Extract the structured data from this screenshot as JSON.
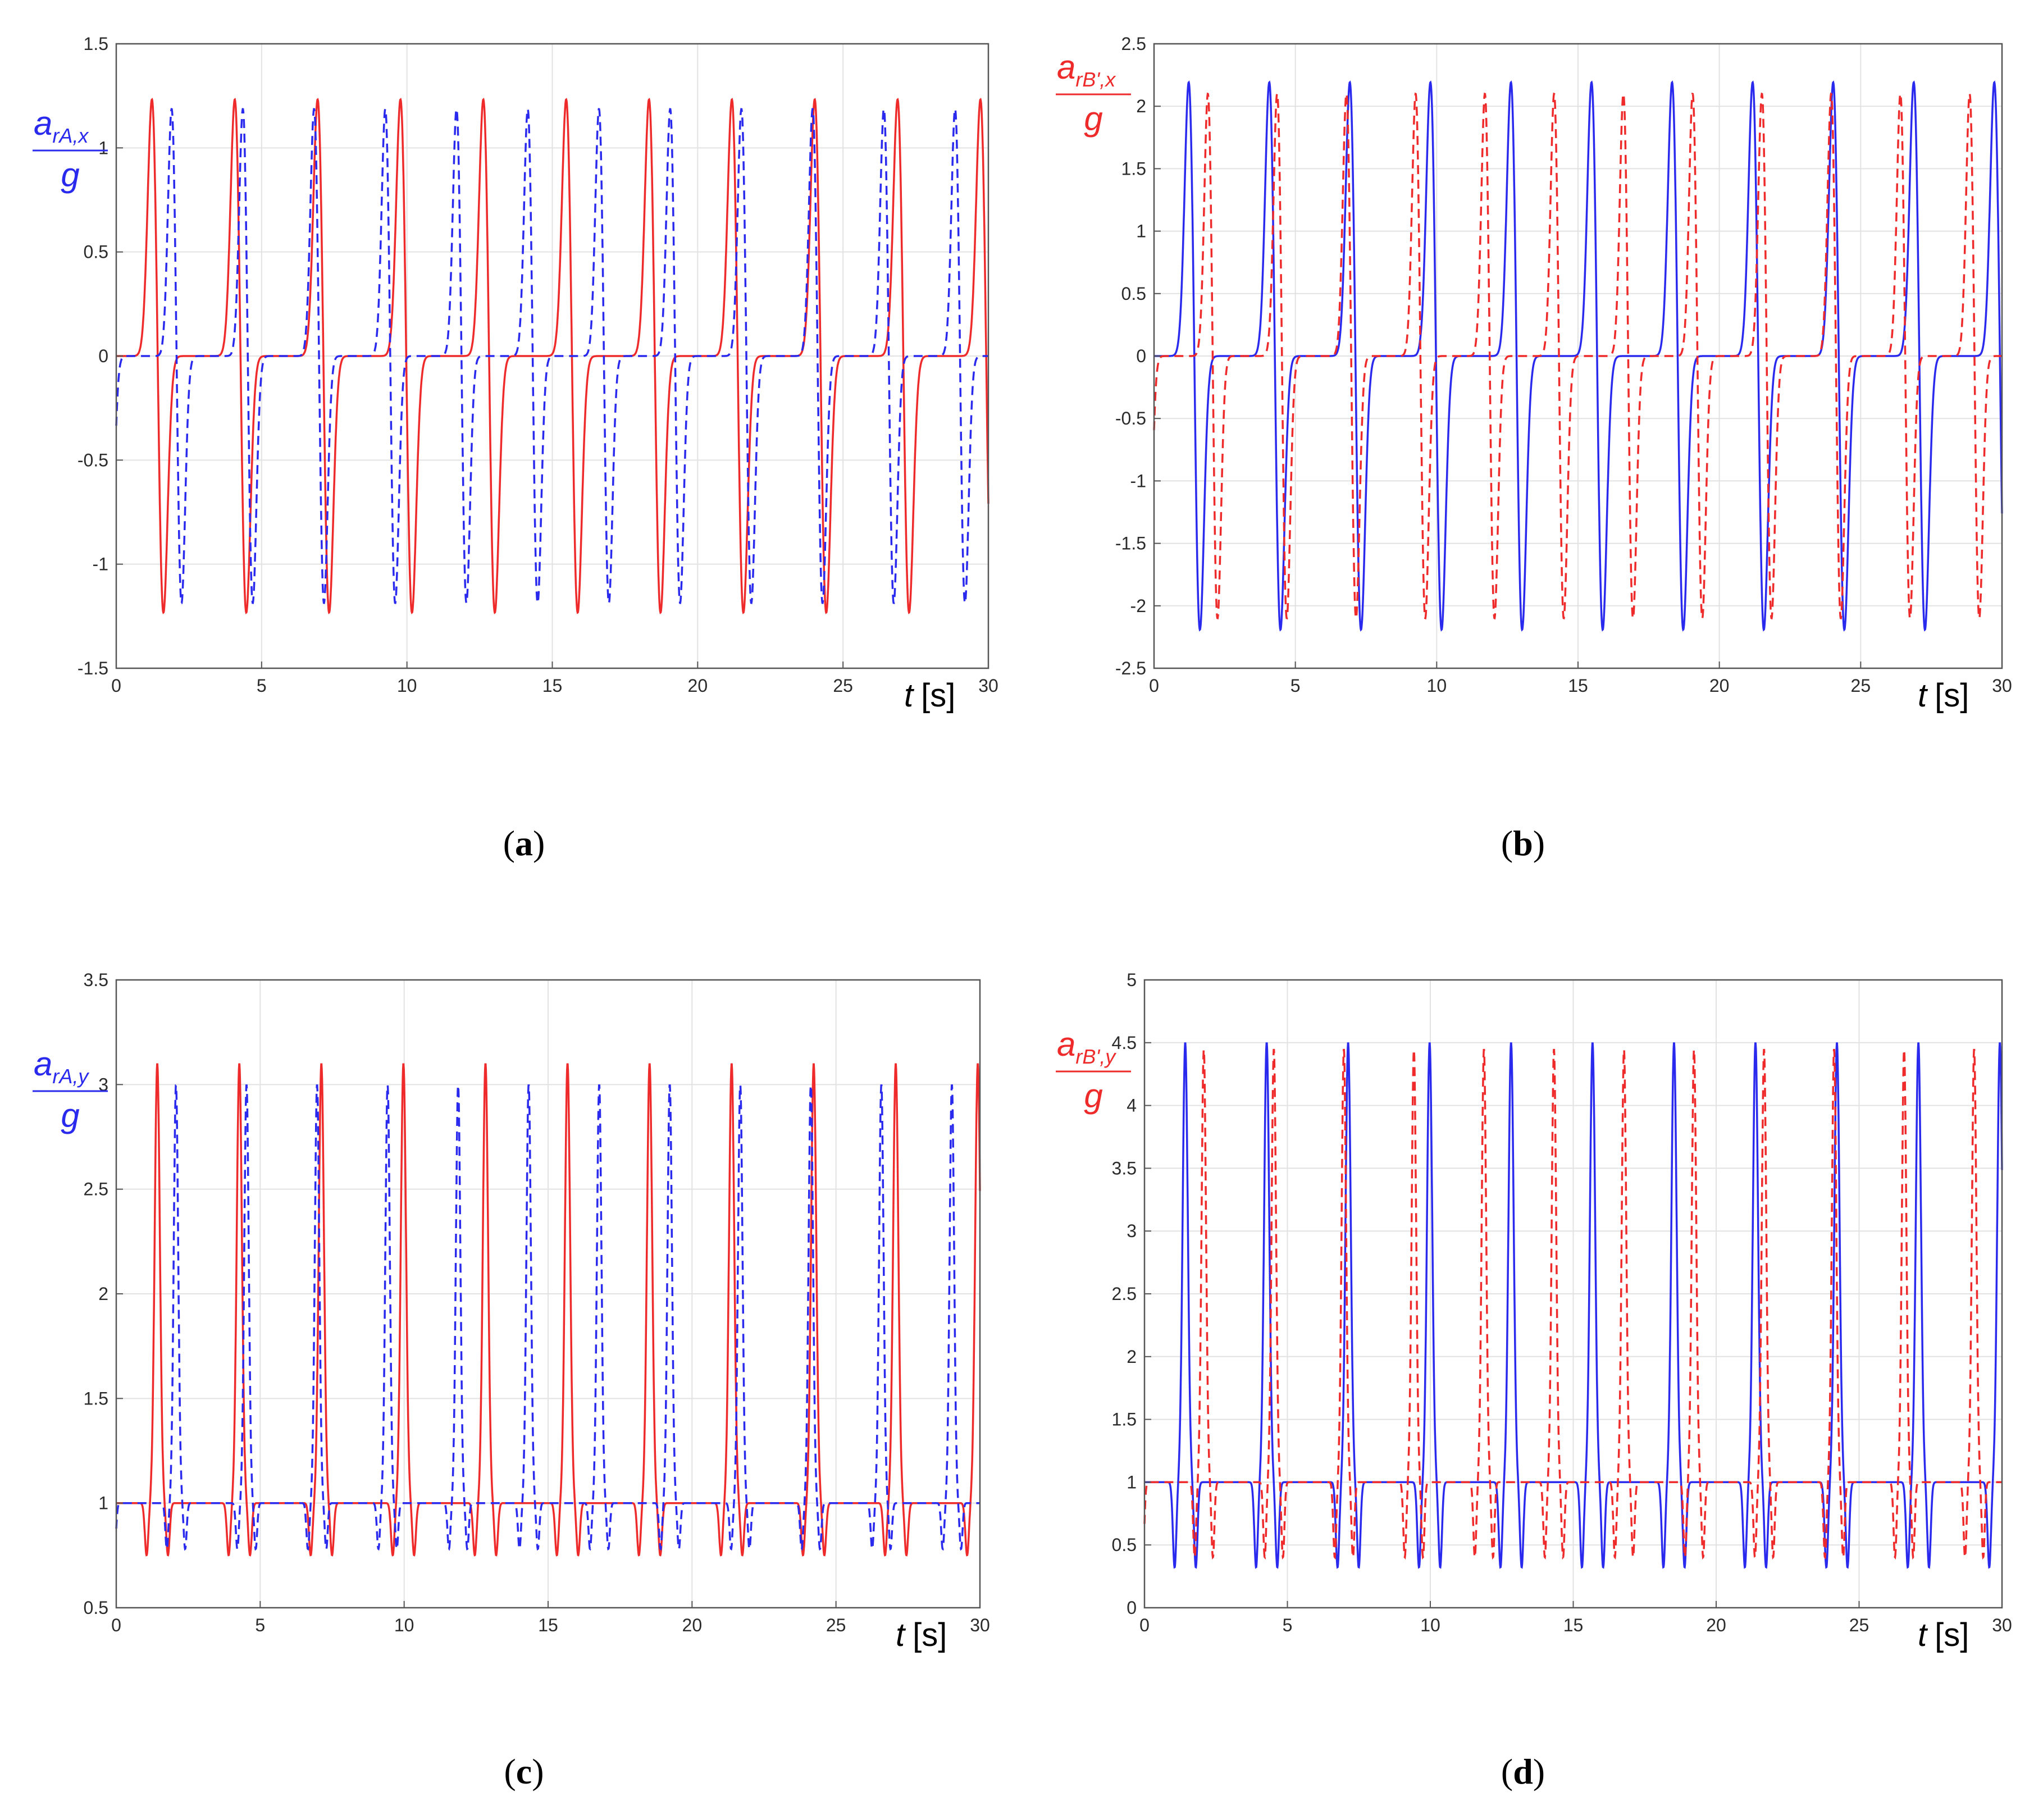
{
  "figure": {
    "panels": [
      {
        "id": "a",
        "caption": "a"
      },
      {
        "id": "b",
        "caption": "b"
      },
      {
        "id": "c",
        "caption": "c"
      },
      {
        "id": "d",
        "caption": "d"
      }
    ]
  },
  "colors": {
    "red": "#ee2a2a",
    "blue": "#2a2aee",
    "grid": "#e2e2e2",
    "axis": "#555555"
  },
  "chart_data": [
    {
      "id": "a",
      "type": "line",
      "ylabel_main": "a",
      "ylabel_sub": "rA,x",
      "ylabel_den": "g",
      "ylabel_color": "#2a2aee",
      "xlabel_var": "t",
      "xlabel_unit": "[s]",
      "xlim": [
        0,
        30
      ],
      "ylim": [
        -1.5,
        1.5
      ],
      "xticks": [
        0,
        5,
        10,
        15,
        20,
        25,
        30
      ],
      "yticks": [
        -1.5,
        -1,
        -0.5,
        0,
        0.5,
        1,
        1.5
      ],
      "yticklabels": [
        "-1.5",
        "-1",
        "-0.5",
        "0",
        "0.5",
        "1",
        "1.5"
      ],
      "grid": true,
      "series": [
        {
          "name": "solid",
          "color": "#ee2a2a",
          "style": "solid",
          "model": "x",
          "period": 5.7,
          "phase": 0.0,
          "amp": 1.35,
          "base": 0
        },
        {
          "name": "dashed",
          "color": "#2a2aee",
          "style": "dashed",
          "model": "x",
          "period": 4.9,
          "phase": 3.3,
          "amp": 1.3,
          "base": 0
        }
      ]
    },
    {
      "id": "b",
      "type": "line",
      "ylabel_main": "a",
      "ylabel_sub": "rB',x",
      "ylabel_den": "g",
      "ylabel_color": "#ee2a2a",
      "xlabel_var": "t",
      "xlabel_unit": "[s]",
      "xlim": [
        0,
        30
      ],
      "ylim": [
        -2.5,
        2.5
      ],
      "xticks": [
        0,
        5,
        10,
        15,
        20,
        25,
        30
      ],
      "yticks": [
        -2.5,
        -2,
        -1.5,
        -1,
        -0.5,
        0,
        0.5,
        1,
        1.5,
        2,
        2.5
      ],
      "yticklabels": [
        "-2.5",
        "-2",
        "-1.5",
        "-1",
        "-0.5",
        "0",
        "0.5",
        "1",
        "1.5",
        "2",
        "2.5"
      ],
      "grid": true,
      "series": [
        {
          "name": "solid",
          "color": "#2a2aee",
          "style": "solid",
          "model": "x",
          "period": 5.7,
          "phase": 0.0,
          "amp": 2.4,
          "base": 0
        },
        {
          "name": "dashed",
          "color": "#ee2a2a",
          "style": "dashed",
          "model": "x",
          "period": 4.9,
          "phase": 3.3,
          "amp": 2.3,
          "base": 0
        }
      ]
    },
    {
      "id": "c",
      "type": "line",
      "ylabel_main": "a",
      "ylabel_sub": "rA,y",
      "ylabel_den": "g",
      "ylabel_color": "#2a2aee",
      "xlabel_var": "t",
      "xlabel_unit": "[s]",
      "xlim": [
        0,
        30
      ],
      "ylim": [
        0.5,
        3.5
      ],
      "xticks": [
        0,
        5,
        10,
        15,
        20,
        25,
        30
      ],
      "yticks": [
        0.5,
        1,
        1.5,
        2,
        2.5,
        3,
        3.5
      ],
      "yticklabels": [
        "0.5",
        "1",
        "1.5",
        "2",
        "2.5",
        "3",
        "3.5"
      ],
      "grid": true,
      "series": [
        {
          "name": "solid",
          "color": "#ee2a2a",
          "style": "solid",
          "model": "y",
          "period": 2.85,
          "phase": 0.0,
          "amp": 3.1,
          "base": 1,
          "dip": 0.75
        },
        {
          "name": "dashed",
          "color": "#2a2aee",
          "style": "dashed",
          "model": "y",
          "period": 2.45,
          "phase": 3.3,
          "amp": 3.0,
          "base": 1,
          "dip": 0.78
        }
      ]
    },
    {
      "id": "d",
      "type": "line",
      "ylabel_main": "a",
      "ylabel_sub": "rB',y",
      "ylabel_den": "g",
      "ylabel_color": "#ee2a2a",
      "xlabel_var": "t",
      "xlabel_unit": "[s]",
      "xlim": [
        0,
        30
      ],
      "ylim": [
        0,
        5
      ],
      "xticks": [
        0,
        5,
        10,
        15,
        20,
        25,
        30
      ],
      "yticks": [
        0,
        0.5,
        1,
        1.5,
        2,
        2.5,
        3,
        3.5,
        4,
        4.5,
        5
      ],
      "yticklabels": [
        "0",
        "0.5",
        "1",
        "1.5",
        "2",
        "2.5",
        "3",
        "3.5",
        "4",
        "4.5",
        "5"
      ],
      "grid": true,
      "series": [
        {
          "name": "solid",
          "color": "#2a2aee",
          "style": "solid",
          "model": "y",
          "period": 2.85,
          "phase": 0.0,
          "amp": 4.5,
          "base": 1,
          "dip": 0.32
        },
        {
          "name": "dashed",
          "color": "#ee2a2a",
          "style": "dashed",
          "model": "y",
          "period": 2.45,
          "phase": 3.3,
          "amp": 4.45,
          "base": 1,
          "dip": 0.4
        }
      ]
    }
  ]
}
